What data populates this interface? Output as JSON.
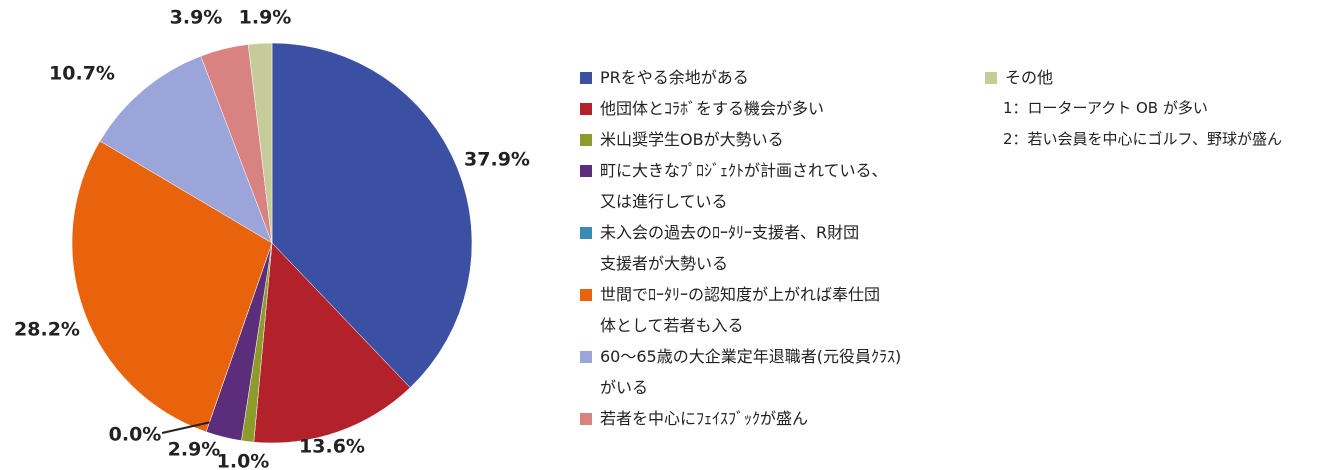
{
  "chart_data": {
    "type": "pie",
    "categories": [
      "PRをやる余地がある",
      "他団体とｺﾗﾎﾞをする機会が多い",
      "米山奨学生OBが大勢いる",
      "町に大きなﾌﾟﾛｼﾞｪｸﾄが計画されている、\n又は進行している",
      "未入会の過去のﾛｰﾀﾘｰ支援者、R財団\n支援者が大勢いる",
      "世間でﾛｰﾀﾘｰの認知度が上がれば奉仕団\n体として若者も入る",
      "60～65歳の大企業定年退職者(元役員ｸﾗｽ)\nがいる",
      "若者を中心にﾌｪｲｽﾌﾞｯｸが盛ん",
      "その他"
    ],
    "values": [
      37.9,
      13.6,
      1.0,
      2.9,
      0.0,
      28.2,
      10.7,
      3.9,
      1.9
    ],
    "value_labels": [
      "37.9%",
      "13.6%",
      "1.0%",
      "2.9%",
      "0.0%",
      "28.2%",
      "10.7%",
      "3.9%",
      "1.9%"
    ],
    "colors": [
      "#3b4fa3",
      "#b3222b",
      "#8c9b2c",
      "#5b2d7b",
      "#3a8bb3",
      "#e8630b",
      "#9ba5d9",
      "#d98282",
      "#c5cc9a"
    ],
    "annotations": [
      "1：ローターアクト OB が多い",
      "2：若い会員を中心にゴルフ、野球が盛ん"
    ]
  }
}
